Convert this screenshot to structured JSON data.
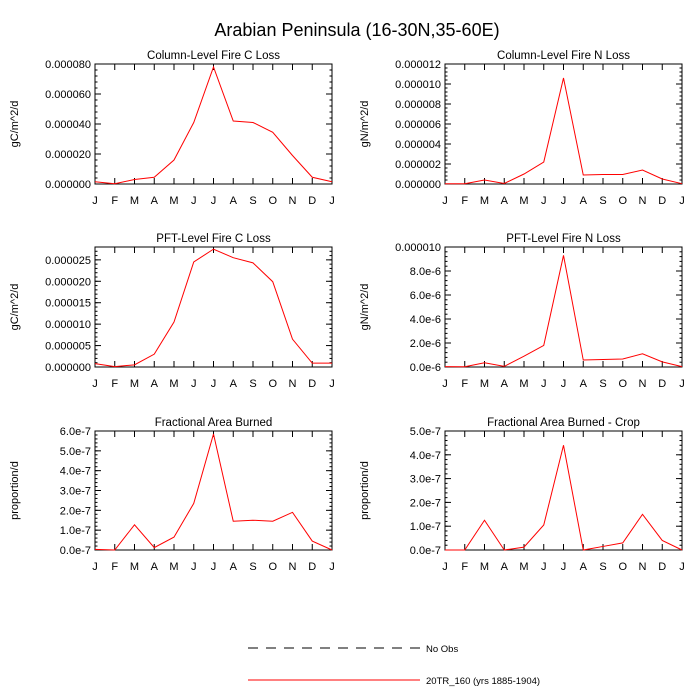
{
  "figure": {
    "title": "Arabian Peninsula (16-30N,35-60E)"
  },
  "legend": {
    "obs_label": "No Obs",
    "model_label": "20TR_160 (yrs 1885-1904)",
    "model_color": "#ff0000",
    "obs_color": "#000000"
  },
  "chart_data": [
    {
      "type": "line",
      "title": "Column-Level Fire C Loss",
      "ylabel": "gC/m^2/d",
      "categories": [
        "J",
        "F",
        "M",
        "A",
        "M",
        "J",
        "J",
        "A",
        "S",
        "O",
        "N",
        "D",
        "J"
      ],
      "ylim": [
        0,
        8e-05
      ],
      "yticks": [
        "0.000000",
        "0.000020",
        "0.000040",
        "0.000060",
        "0.000080"
      ],
      "ytick_values": [
        0,
        2e-05,
        4e-05,
        6e-05,
        8e-05
      ],
      "series": [
        {
          "name": "20TR_160 (yrs 1885-1904)",
          "values": [
            1.5e-06,
            2e-07,
            3e-06,
            4.5e-06,
            1.6e-05,
            4.1e-05,
            7.8e-05,
            4.2e-05,
            4.1e-05,
            3.45e-05,
            1.9e-05,
            4.5e-06,
            1.5e-06
          ]
        }
      ]
    },
    {
      "type": "line",
      "title": "Column-Level Fire N Loss",
      "ylabel": "gN/m^2/d",
      "categories": [
        "J",
        "F",
        "M",
        "A",
        "M",
        "J",
        "J",
        "A",
        "S",
        "O",
        "N",
        "D",
        "J"
      ],
      "ylim": [
        0,
        1.2e-05
      ],
      "yticks": [
        "0.000000",
        "0.000002",
        "0.000004",
        "0.000006",
        "0.000008",
        "0.000010",
        "0.000012"
      ],
      "ytick_values": [
        0,
        2e-06,
        4e-06,
        6e-06,
        8e-06,
        1e-05,
        1.2e-05
      ],
      "series": [
        {
          "name": "20TR_160 (yrs 1885-1904)",
          "values": [
            3e-08,
            2e-08,
            4e-07,
            5e-08,
            1e-06,
            2.2e-06,
            1.06e-05,
            9e-07,
            9.5e-07,
            9.5e-07,
            1.4e-06,
            5e-07,
            3e-08
          ]
        }
      ]
    },
    {
      "type": "line",
      "title": "PFT-Level Fire C Loss",
      "ylabel": "gC/m^2/d",
      "categories": [
        "J",
        "F",
        "M",
        "A",
        "M",
        "J",
        "J",
        "A",
        "S",
        "O",
        "N",
        "D",
        "J"
      ],
      "ylim": [
        0,
        2.8e-05
      ],
      "yticks": [
        "0.000000",
        "0.000005",
        "0.000010",
        "0.000015",
        "0.000020",
        "0.000025"
      ],
      "ytick_values": [
        0,
        5e-06,
        1e-05,
        1.5e-05,
        2e-05,
        2.5e-05
      ],
      "series": [
        {
          "name": "20TR_160 (yrs 1885-1904)",
          "values": [
            8e-07,
            1e-07,
            5e-07,
            3e-06,
            1.05e-05,
            2.45e-05,
            2.75e-05,
            2.55e-05,
            2.43e-05,
            1.99e-05,
            6.5e-06,
            9e-07,
            9e-07
          ]
        }
      ]
    },
    {
      "type": "line",
      "title": "PFT-Level Fire N Loss",
      "ylabel": "gN/m^2/d",
      "categories": [
        "J",
        "F",
        "M",
        "A",
        "M",
        "J",
        "J",
        "A",
        "S",
        "O",
        "N",
        "D",
        "J"
      ],
      "ylim": [
        0,
        1e-05
      ],
      "yticks": [
        "0.0e-6",
        "2.0e-6",
        "4.0e-6",
        "6.0e-6",
        "8.0e-6",
        "0.000010"
      ],
      "ytick_values": [
        0,
        2e-06,
        4e-06,
        6e-06,
        8e-06,
        1e-05
      ],
      "series": [
        {
          "name": "20TR_160 (yrs 1885-1904)",
          "values": [
            3e-08,
            2e-08,
            3.5e-07,
            5e-08,
            9e-07,
            1.8e-06,
            9.3e-06,
            5.8e-07,
            6.2e-07,
            6.7e-07,
            1.1e-06,
            4.3e-07,
            3e-08
          ]
        }
      ]
    },
    {
      "type": "line",
      "title": "Fractional Area Burned",
      "ylabel": "proportion/d",
      "categories": [
        "J",
        "F",
        "M",
        "A",
        "M",
        "J",
        "J",
        "A",
        "S",
        "O",
        "N",
        "D",
        "J"
      ],
      "ylim": [
        0,
        6e-07
      ],
      "yticks": [
        "0.0e-7",
        "1.0e-7",
        "2.0e-7",
        "3.0e-7",
        "4.0e-7",
        "5.0e-7",
        "6.0e-7"
      ],
      "ytick_values": [
        0,
        1e-07,
        2e-07,
        3e-07,
        4e-07,
        5e-07,
        6e-07
      ],
      "series": [
        {
          "name": "20TR_160 (yrs 1885-1904)",
          "values": [
            3e-09,
            0,
            1.27e-07,
            1.2e-08,
            6.5e-08,
            2.35e-07,
            5.85e-07,
            1.45e-07,
            1.5e-07,
            1.45e-07,
            1.9e-07,
            4.5e-08,
            0
          ]
        }
      ]
    },
    {
      "type": "line",
      "title": "Fractional Area Burned - Crop",
      "ylabel": "proportion/d",
      "categories": [
        "J",
        "F",
        "M",
        "A",
        "M",
        "J",
        "J",
        "A",
        "S",
        "O",
        "N",
        "D",
        "J"
      ],
      "ylim": [
        0,
        5e-07
      ],
      "yticks": [
        "0.0e-7",
        "1.0e-7",
        "2.0e-7",
        "3.0e-7",
        "4.0e-7",
        "5.0e-7"
      ],
      "ytick_values": [
        0,
        1e-07,
        2e-07,
        3e-07,
        4e-07,
        5e-07
      ],
      "series": [
        {
          "name": "20TR_160 (yrs 1885-1904)",
          "values": [
            0,
            0,
            1.25e-07,
            0,
            1.2e-08,
            1.05e-07,
            4.4e-07,
            0,
            1.5e-08,
            3e-08,
            1.5e-07,
            4e-08,
            0
          ]
        }
      ]
    }
  ]
}
